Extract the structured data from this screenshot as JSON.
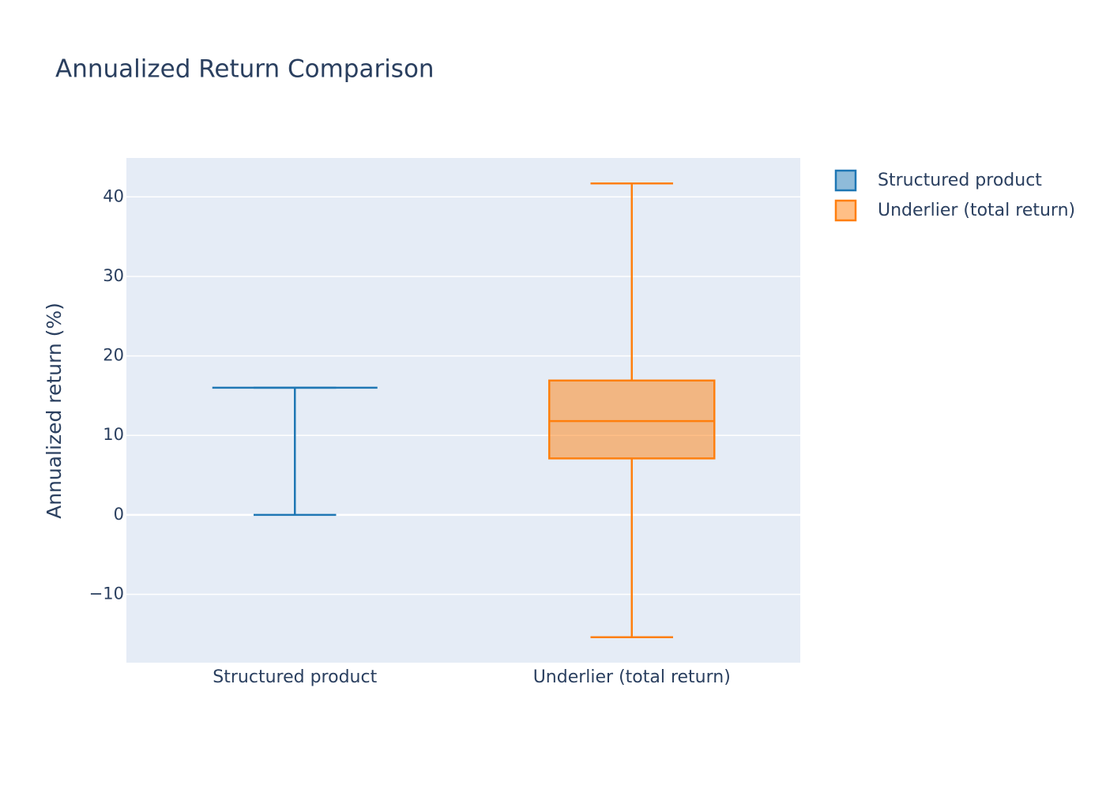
{
  "chart_data": {
    "type": "box",
    "title": "Annualized Return Comparison",
    "y_label": "Annualized return (%)",
    "categories": [
      "Structured product",
      "Underlier (total return)"
    ],
    "series": [
      {
        "name": "Structured product",
        "color": "#1f77b4",
        "min": 0,
        "q1": 16,
        "median": 16,
        "q3": 16,
        "max": 16
      },
      {
        "name": "Underlier (total return)",
        "color": "#ff7f0e",
        "min": -15.4,
        "q1": 7.1,
        "median": 11.8,
        "q3": 16.9,
        "max": 41.7
      }
    ],
    "ylim": [
      -18.6,
      44.9
    ],
    "yticks": [
      {
        "value": -10,
        "label": "−10"
      },
      0,
      10,
      20,
      30,
      40
    ],
    "grid": true,
    "legend": "top-right"
  }
}
